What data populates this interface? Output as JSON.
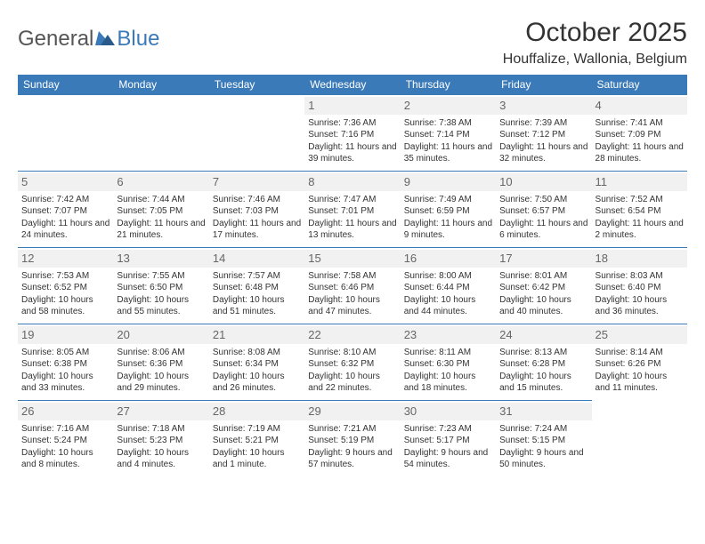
{
  "brand": {
    "general": "General",
    "blue": "Blue"
  },
  "title": "October 2025",
  "location": "Houffalize, Wallonia, Belgium",
  "colors": {
    "accent": "#3a7ab8",
    "text": "#333333",
    "daynum_bg": "#f1f1f1"
  },
  "weekdays": [
    "Sunday",
    "Monday",
    "Tuesday",
    "Wednesday",
    "Thursday",
    "Friday",
    "Saturday"
  ],
  "weeks": [
    [
      null,
      null,
      null,
      {
        "day": "1",
        "sunrise": "Sunrise: 7:36 AM",
        "sunset": "Sunset: 7:16 PM",
        "daylight": "Daylight: 11 hours and 39 minutes."
      },
      {
        "day": "2",
        "sunrise": "Sunrise: 7:38 AM",
        "sunset": "Sunset: 7:14 PM",
        "daylight": "Daylight: 11 hours and 35 minutes."
      },
      {
        "day": "3",
        "sunrise": "Sunrise: 7:39 AM",
        "sunset": "Sunset: 7:12 PM",
        "daylight": "Daylight: 11 hours and 32 minutes."
      },
      {
        "day": "4",
        "sunrise": "Sunrise: 7:41 AM",
        "sunset": "Sunset: 7:09 PM",
        "daylight": "Daylight: 11 hours and 28 minutes."
      }
    ],
    [
      {
        "day": "5",
        "sunrise": "Sunrise: 7:42 AM",
        "sunset": "Sunset: 7:07 PM",
        "daylight": "Daylight: 11 hours and 24 minutes."
      },
      {
        "day": "6",
        "sunrise": "Sunrise: 7:44 AM",
        "sunset": "Sunset: 7:05 PM",
        "daylight": "Daylight: 11 hours and 21 minutes."
      },
      {
        "day": "7",
        "sunrise": "Sunrise: 7:46 AM",
        "sunset": "Sunset: 7:03 PM",
        "daylight": "Daylight: 11 hours and 17 minutes."
      },
      {
        "day": "8",
        "sunrise": "Sunrise: 7:47 AM",
        "sunset": "Sunset: 7:01 PM",
        "daylight": "Daylight: 11 hours and 13 minutes."
      },
      {
        "day": "9",
        "sunrise": "Sunrise: 7:49 AM",
        "sunset": "Sunset: 6:59 PM",
        "daylight": "Daylight: 11 hours and 9 minutes."
      },
      {
        "day": "10",
        "sunrise": "Sunrise: 7:50 AM",
        "sunset": "Sunset: 6:57 PM",
        "daylight": "Daylight: 11 hours and 6 minutes."
      },
      {
        "day": "11",
        "sunrise": "Sunrise: 7:52 AM",
        "sunset": "Sunset: 6:54 PM",
        "daylight": "Daylight: 11 hours and 2 minutes."
      }
    ],
    [
      {
        "day": "12",
        "sunrise": "Sunrise: 7:53 AM",
        "sunset": "Sunset: 6:52 PM",
        "daylight": "Daylight: 10 hours and 58 minutes."
      },
      {
        "day": "13",
        "sunrise": "Sunrise: 7:55 AM",
        "sunset": "Sunset: 6:50 PM",
        "daylight": "Daylight: 10 hours and 55 minutes."
      },
      {
        "day": "14",
        "sunrise": "Sunrise: 7:57 AM",
        "sunset": "Sunset: 6:48 PM",
        "daylight": "Daylight: 10 hours and 51 minutes."
      },
      {
        "day": "15",
        "sunrise": "Sunrise: 7:58 AM",
        "sunset": "Sunset: 6:46 PM",
        "daylight": "Daylight: 10 hours and 47 minutes."
      },
      {
        "day": "16",
        "sunrise": "Sunrise: 8:00 AM",
        "sunset": "Sunset: 6:44 PM",
        "daylight": "Daylight: 10 hours and 44 minutes."
      },
      {
        "day": "17",
        "sunrise": "Sunrise: 8:01 AM",
        "sunset": "Sunset: 6:42 PM",
        "daylight": "Daylight: 10 hours and 40 minutes."
      },
      {
        "day": "18",
        "sunrise": "Sunrise: 8:03 AM",
        "sunset": "Sunset: 6:40 PM",
        "daylight": "Daylight: 10 hours and 36 minutes."
      }
    ],
    [
      {
        "day": "19",
        "sunrise": "Sunrise: 8:05 AM",
        "sunset": "Sunset: 6:38 PM",
        "daylight": "Daylight: 10 hours and 33 minutes."
      },
      {
        "day": "20",
        "sunrise": "Sunrise: 8:06 AM",
        "sunset": "Sunset: 6:36 PM",
        "daylight": "Daylight: 10 hours and 29 minutes."
      },
      {
        "day": "21",
        "sunrise": "Sunrise: 8:08 AM",
        "sunset": "Sunset: 6:34 PM",
        "daylight": "Daylight: 10 hours and 26 minutes."
      },
      {
        "day": "22",
        "sunrise": "Sunrise: 8:10 AM",
        "sunset": "Sunset: 6:32 PM",
        "daylight": "Daylight: 10 hours and 22 minutes."
      },
      {
        "day": "23",
        "sunrise": "Sunrise: 8:11 AM",
        "sunset": "Sunset: 6:30 PM",
        "daylight": "Daylight: 10 hours and 18 minutes."
      },
      {
        "day": "24",
        "sunrise": "Sunrise: 8:13 AM",
        "sunset": "Sunset: 6:28 PM",
        "daylight": "Daylight: 10 hours and 15 minutes."
      },
      {
        "day": "25",
        "sunrise": "Sunrise: 8:14 AM",
        "sunset": "Sunset: 6:26 PM",
        "daylight": "Daylight: 10 hours and 11 minutes."
      }
    ],
    [
      {
        "day": "26",
        "sunrise": "Sunrise: 7:16 AM",
        "sunset": "Sunset: 5:24 PM",
        "daylight": "Daylight: 10 hours and 8 minutes."
      },
      {
        "day": "27",
        "sunrise": "Sunrise: 7:18 AM",
        "sunset": "Sunset: 5:23 PM",
        "daylight": "Daylight: 10 hours and 4 minutes."
      },
      {
        "day": "28",
        "sunrise": "Sunrise: 7:19 AM",
        "sunset": "Sunset: 5:21 PM",
        "daylight": "Daylight: 10 hours and 1 minute."
      },
      {
        "day": "29",
        "sunrise": "Sunrise: 7:21 AM",
        "sunset": "Sunset: 5:19 PM",
        "daylight": "Daylight: 9 hours and 57 minutes."
      },
      {
        "day": "30",
        "sunrise": "Sunrise: 7:23 AM",
        "sunset": "Sunset: 5:17 PM",
        "daylight": "Daylight: 9 hours and 54 minutes."
      },
      {
        "day": "31",
        "sunrise": "Sunrise: 7:24 AM",
        "sunset": "Sunset: 5:15 PM",
        "daylight": "Daylight: 9 hours and 50 minutes."
      },
      null
    ]
  ]
}
